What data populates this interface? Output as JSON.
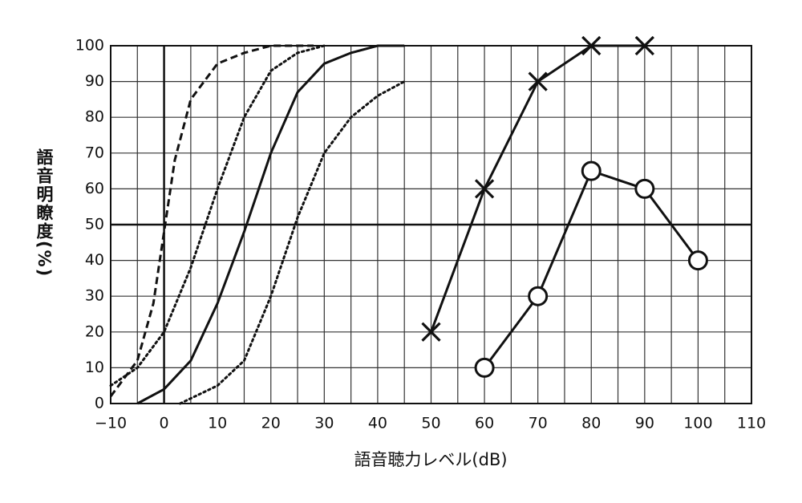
{
  "chart_data": {
    "type": "line",
    "xlabel": "語音聴力レベル(dB)",
    "ylabel": "語音明瞭度(%)",
    "xlim": [
      -10,
      110
    ],
    "ylim": [
      0,
      100
    ],
    "xticks": [
      {
        "value": -10,
        "label": "−10"
      },
      0,
      10,
      20,
      30,
      40,
      50,
      60,
      70,
      80,
      90,
      100,
      110
    ],
    "yticks": [
      0,
      10,
      20,
      30,
      40,
      50,
      60,
      70,
      80,
      90,
      100
    ],
    "grid": true,
    "reference_lines": {
      "x": 0,
      "y": 50
    },
    "series": [
      {
        "color": "#111111",
        "style": "dashed",
        "marker": "none",
        "x": [
          -10,
          -5,
          -2,
          0,
          2,
          5,
          10,
          15,
          20,
          28
        ],
        "values": [
          2,
          12,
          28,
          48,
          68,
          85,
          95,
          98,
          100,
          100
        ]
      },
      {
        "color": "#111111",
        "style": "dotted",
        "marker": "none",
        "x": [
          -10,
          -5,
          0,
          5,
          10,
          15,
          20,
          25,
          30
        ],
        "values": [
          5,
          10,
          20,
          38,
          60,
          80,
          93,
          98,
          100
        ]
      },
      {
        "color": "#111111",
        "style": "solid",
        "marker": "none",
        "x": [
          -5,
          0,
          5,
          10,
          15,
          20,
          25,
          30,
          35,
          40,
          45
        ],
        "values": [
          0,
          4,
          12,
          28,
          48,
          70,
          87,
          95,
          98,
          100,
          100
        ]
      },
      {
        "color": "#111111",
        "style": "dotted",
        "marker": "none",
        "x": [
          3,
          10,
          15,
          20,
          25,
          30,
          35,
          40,
          45
        ],
        "values": [
          0,
          5,
          12,
          30,
          52,
          70,
          80,
          86,
          90
        ]
      },
      {
        "color": "#111111",
        "style": "solid",
        "marker": "cross",
        "x": [
          50,
          60,
          70,
          80,
          90
        ],
        "values": [
          20,
          60,
          90,
          100,
          100
        ]
      },
      {
        "color": "#111111",
        "style": "solid",
        "marker": "circle",
        "x": [
          60,
          70,
          80,
          90,
          100
        ],
        "values": [
          10,
          30,
          65,
          60,
          40
        ]
      }
    ]
  }
}
